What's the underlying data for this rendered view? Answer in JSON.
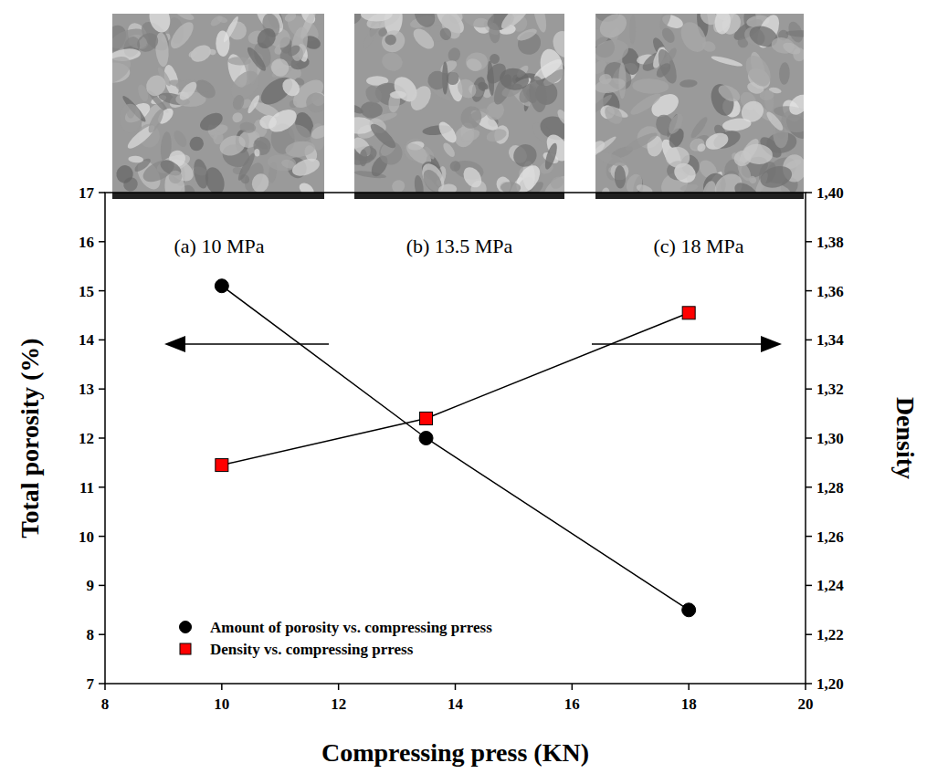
{
  "chart_data": {
    "type": "line",
    "x_label": "Compressing press (KN)",
    "y_label": "Total porosity (%)",
    "y2_label": "Density",
    "x": [
      10,
      13.5,
      18
    ],
    "series": [
      {
        "name": "Amount of porosity vs. compressing prress",
        "color": "#000000",
        "marker": "circle",
        "line_style": "solid",
        "values": [
          15.1,
          12.0,
          8.5
        ]
      },
      {
        "name": "Density vs. compressing prress",
        "color": "#ff0000",
        "marker": "square",
        "line_style": "solid",
        "axis": "y2",
        "values": [
          1.289,
          1.308,
          1.351
        ]
      }
    ],
    "xlim": [
      8,
      20
    ],
    "xticks": [
      8,
      10,
      12,
      14,
      16,
      18,
      20
    ],
    "ylim": [
      7,
      17
    ],
    "yticks": [
      7,
      8,
      9,
      10,
      11,
      12,
      13,
      14,
      15,
      16,
      17
    ],
    "y2lim": [
      1.2,
      1.4
    ],
    "y2ticks": [
      {
        "value": 1.2,
        "label": "1,20"
      },
      {
        "value": 1.22,
        "label": "1,22"
      },
      {
        "value": 1.24,
        "label": "1,24"
      },
      {
        "value": 1.26,
        "label": "1,26"
      },
      {
        "value": 1.28,
        "label": "1,28"
      },
      {
        "value": 1.3,
        "label": "1,30"
      },
      {
        "value": 1.32,
        "label": "1,32"
      },
      {
        "value": 1.34,
        "label": "1,34"
      },
      {
        "value": 1.36,
        "label": "1,36"
      },
      {
        "value": 1.38,
        "label": "1,38"
      },
      {
        "value": 1.4,
        "label": "1,40"
      }
    ],
    "annotations": [
      "(a) 10 MPa",
      "(b) 13.5 MPa",
      "(c) 18 MPa"
    ],
    "legend": "lower left",
    "grid": false
  }
}
